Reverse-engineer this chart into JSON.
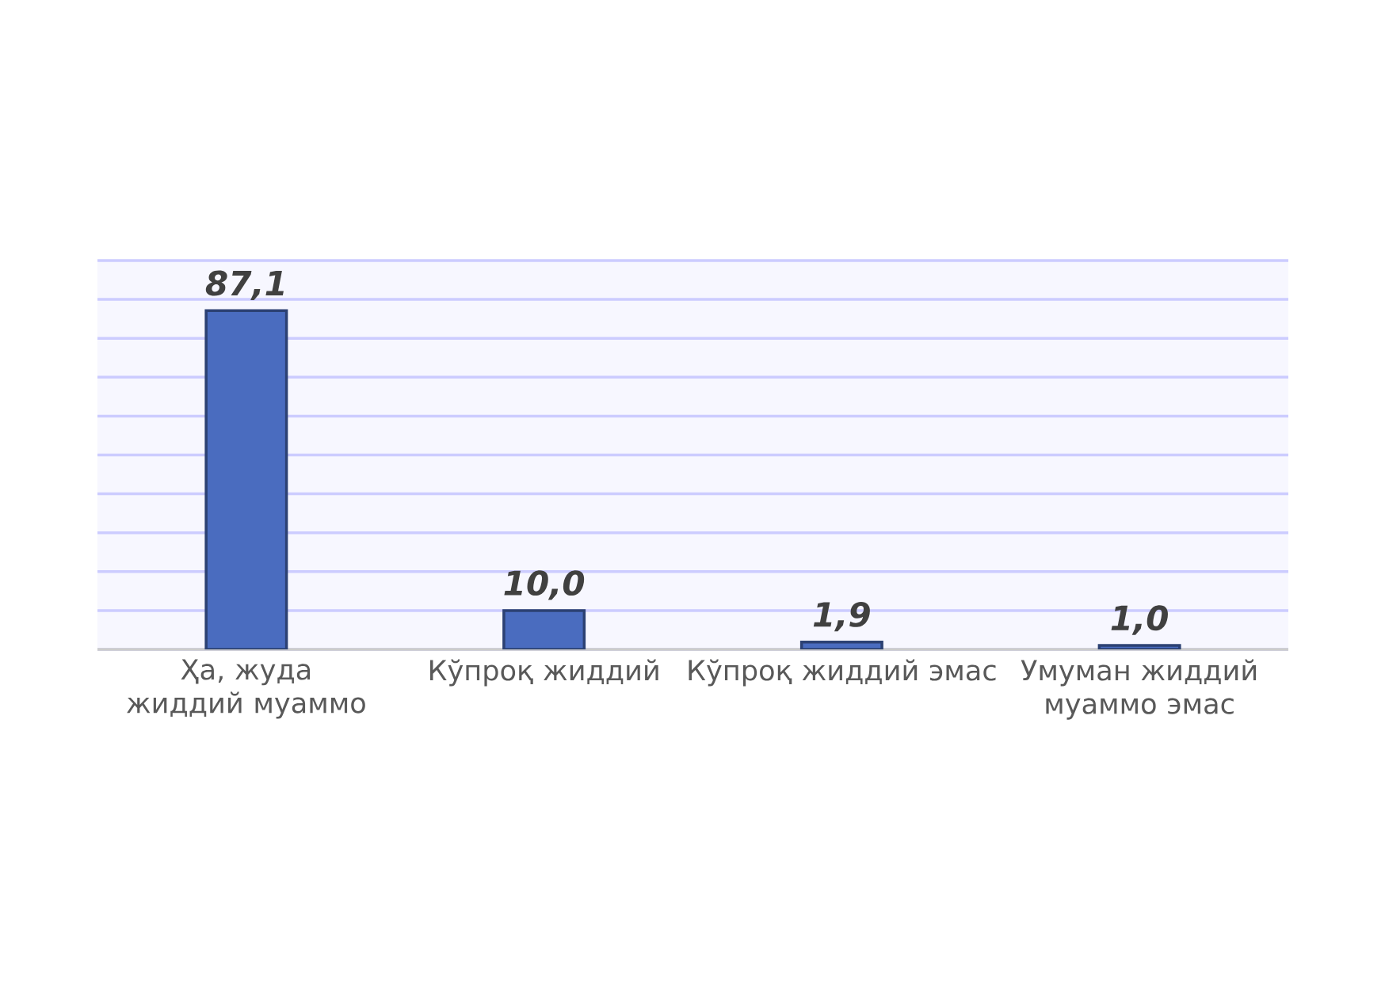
{
  "chart_data": {
    "type": "bar",
    "categories": [
      "Ҳа, жуда жиддий муаммо",
      "Кўпроқ жиддий",
      "Кўпроқ жиддий эмас",
      "Умуман жиддий муаммо эмас"
    ],
    "values": [
      87.1,
      10.0,
      1.9,
      1.0
    ],
    "value_labels": [
      "87,1",
      "10,0",
      "1,9",
      "1,0"
    ],
    "color": "#4a6cbf",
    "ylim": [
      0,
      100
    ],
    "yticks": [
      {
        "value": 0,
        "label": null
      },
      {
        "value": 10,
        "label": null
      },
      {
        "value": 20,
        "label": null
      },
      {
        "value": 30,
        "label": null
      },
      {
        "value": 40,
        "label": null
      },
      {
        "value": 50,
        "label": null
      },
      {
        "value": 60,
        "label": null
      },
      {
        "value": 70,
        "label": null
      },
      {
        "value": 80,
        "label": null
      },
      {
        "value": 90,
        "label": null
      },
      {
        "value": 100,
        "label": null
      }
    ],
    "grid": "y",
    "tick_labels": "x"
  }
}
